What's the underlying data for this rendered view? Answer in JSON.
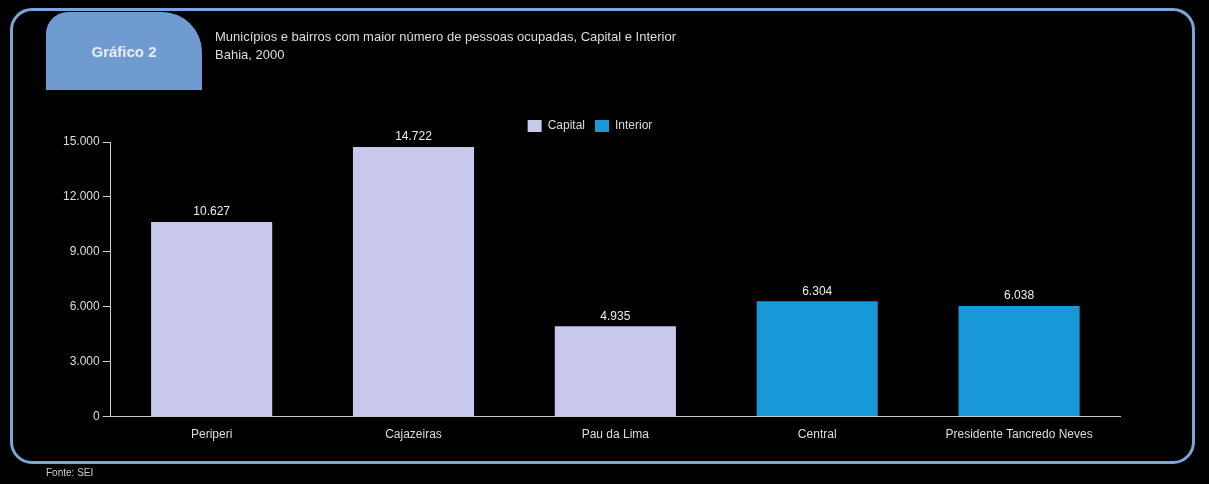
{
  "chart_data": {
    "type": "bar",
    "title": "Municípios e bairros com maior número de pessoas ocupadas, Capital e Interior",
    "subtitle": "Bahia, 2000",
    "categories": [
      "Periperi",
      "Cajazeiras",
      "Pau da Lima",
      "Central",
      "Presidente Tancredo Neves"
    ],
    "series": [
      {
        "name": "Capital",
        "color": "#c8c8ec",
        "values": [
          10627,
          14722,
          4935,
          null,
          null
        ],
        "value_labels": [
          "10.627",
          "14.722",
          "4.935",
          null,
          null
        ]
      },
      {
        "name": "Interior",
        "color": "#1898d8",
        "values": [
          null,
          null,
          null,
          6304,
          6038
        ],
        "value_labels": [
          null,
          null,
          null,
          "6.304",
          "6.038"
        ]
      }
    ],
    "ylim": [
      0,
      15000
    ],
    "yticks": [
      0,
      {
        "value": 3000,
        "label": "3.000"
      },
      {
        "value": 6000,
        "label": "6.000"
      },
      {
        "value": 9000,
        "label": "9.000"
      },
      {
        "value": 12000,
        "label": "12.000"
      },
      {
        "value": 15000,
        "label": "15.000"
      }
    ],
    "grid": false,
    "legend": "top",
    "annotations": [
      "Gráfico 2",
      "Fonte: SEI"
    ]
  }
}
